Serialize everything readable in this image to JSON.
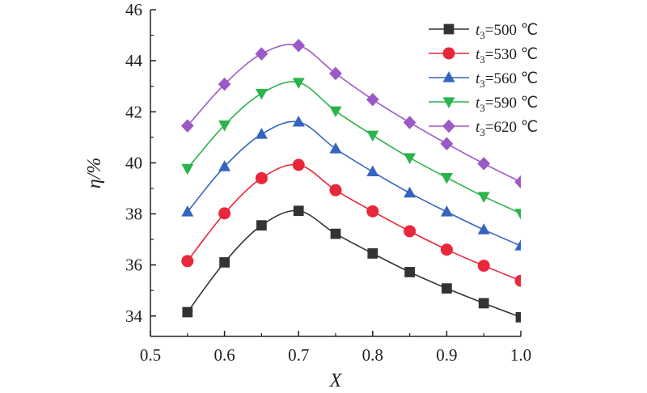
{
  "chart_data": {
    "type": "line",
    "xlabel": "X",
    "ylabel": "η/%",
    "xlim": [
      0.5,
      1.0
    ],
    "ylim": [
      33.2,
      46
    ],
    "xticks": [
      "0.5",
      "0.6",
      "0.7",
      "0.8",
      "0.9",
      "1.0"
    ],
    "yticks": [
      "34",
      "36",
      "38",
      "40",
      "42",
      "44",
      "46"
    ],
    "grid": false,
    "legend_position": "top-right",
    "x": [
      0.55,
      0.6,
      0.65,
      0.7,
      0.75,
      0.8,
      0.85,
      0.9,
      0.95,
      1.0
    ],
    "series": [
      {
        "name_var": "t",
        "name_sub": "3",
        "name_rest": "=500 ℃",
        "marker": "square",
        "color": "#333333",
        "values": [
          34.15,
          36.1,
          37.55,
          38.12,
          37.22,
          36.45,
          35.72,
          35.08,
          34.5,
          33.95
        ]
      },
      {
        "name_var": "t",
        "name_sub": "3",
        "name_rest": "=530 ℃",
        "marker": "circle",
        "color": "#e8273a",
        "values": [
          36.15,
          38.02,
          39.4,
          39.92,
          38.93,
          38.1,
          37.32,
          36.6,
          35.97,
          35.38
        ]
      },
      {
        "name_var": "t",
        "name_sub": "3",
        "name_rest": "=560 ℃",
        "marker": "triangle-up",
        "color": "#3564c0",
        "values": [
          38.08,
          39.85,
          41.12,
          41.6,
          40.55,
          39.65,
          38.82,
          38.08,
          37.38,
          36.75
        ]
      },
      {
        "name_var": "t",
        "name_sub": "3",
        "name_rest": "=590 ℃",
        "marker": "triangle-down",
        "color": "#2cb34a",
        "values": [
          39.78,
          41.48,
          42.72,
          43.15,
          42.03,
          41.08,
          40.2,
          39.42,
          38.68,
          38.02
        ]
      },
      {
        "name_var": "t",
        "name_sub": "3",
        "name_rest": "=620 ℃",
        "marker": "diamond",
        "color": "#9b59c6",
        "values": [
          41.45,
          43.08,
          44.27,
          44.6,
          43.5,
          42.48,
          41.58,
          40.75,
          39.97,
          39.25
        ]
      }
    ]
  }
}
